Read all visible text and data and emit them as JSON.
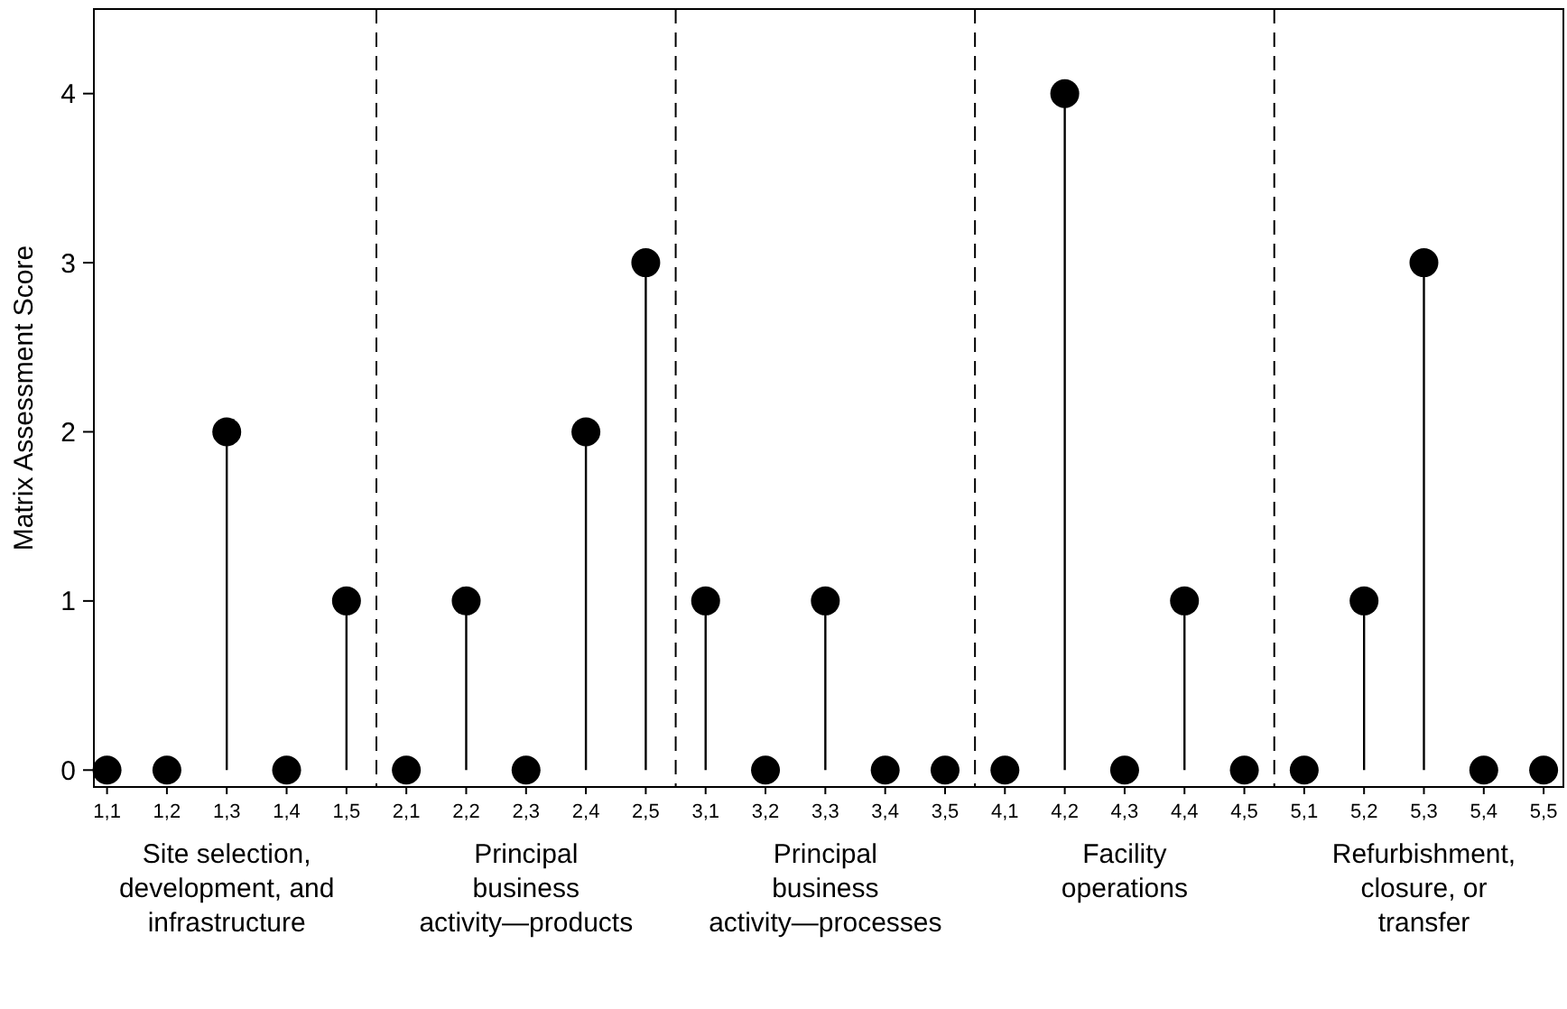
{
  "chart_data": {
    "type": "lollipop",
    "ylabel": "Matrix Assessment Score",
    "categories": [
      "1,1",
      "1,2",
      "1,3",
      "1,4",
      "1,5",
      "2,1",
      "2,2",
      "2,3",
      "2,4",
      "2,5",
      "3,1",
      "3,2",
      "3,3",
      "3,4",
      "3,5",
      "4,1",
      "4,2",
      "4,3",
      "4,4",
      "4,5",
      "5,1",
      "5,2",
      "5,3",
      "5,4",
      "5,5"
    ],
    "values": [
      0,
      0,
      2,
      0,
      1,
      0,
      1,
      0,
      2,
      3,
      1,
      0,
      1,
      0,
      0,
      0,
      4,
      0,
      1,
      0,
      0,
      1,
      3,
      0,
      0
    ],
    "color": "#000000",
    "marker": "circle",
    "ylim": [
      -0.1,
      4.5
    ],
    "yticks": [
      0,
      1,
      2,
      3,
      4
    ],
    "annotations": [
      "Site selection, development, and infrastructure",
      "Principal business activity—products",
      "Principal business activity—processes",
      "Facility operations",
      "Refurbishment, closure, or transfer"
    ]
  }
}
